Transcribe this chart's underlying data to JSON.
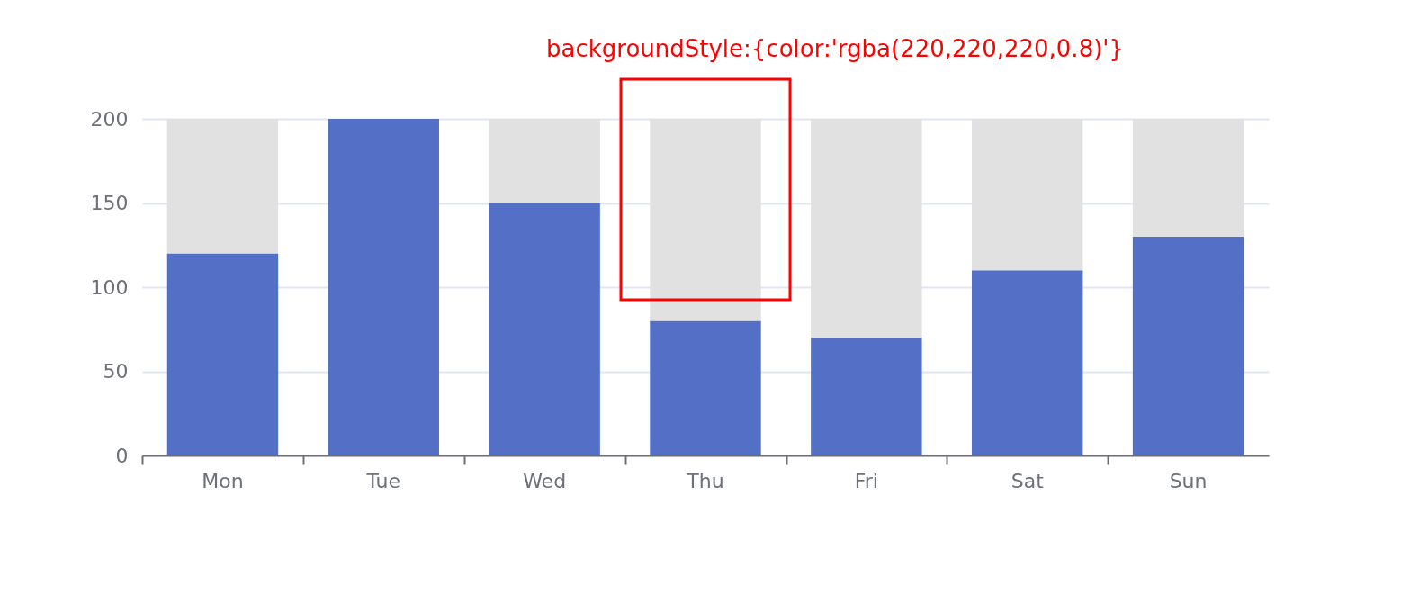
{
  "chart_data": {
    "type": "bar",
    "categories": [
      "Mon",
      "Tue",
      "Wed",
      "Thu",
      "Fri",
      "Sat",
      "Sun"
    ],
    "series": [
      {
        "color": "#5470c6",
        "values": [
          120,
          200,
          150,
          80,
          70,
          110,
          130
        ]
      },
      {
        "color": "#e1e1e1",
        "values": [
          80,
          0,
          50,
          120,
          130,
          90,
          70
        ]
      }
    ],
    "stacked": true,
    "ylim": [
      0,
      200
    ],
    "yticks": [
      0,
      50,
      100,
      150,
      200
    ],
    "grid": "y",
    "annotations": [
      "backgroundStyle:{color:'rgba(220,220,220,0.8)'}"
    ]
  }
}
